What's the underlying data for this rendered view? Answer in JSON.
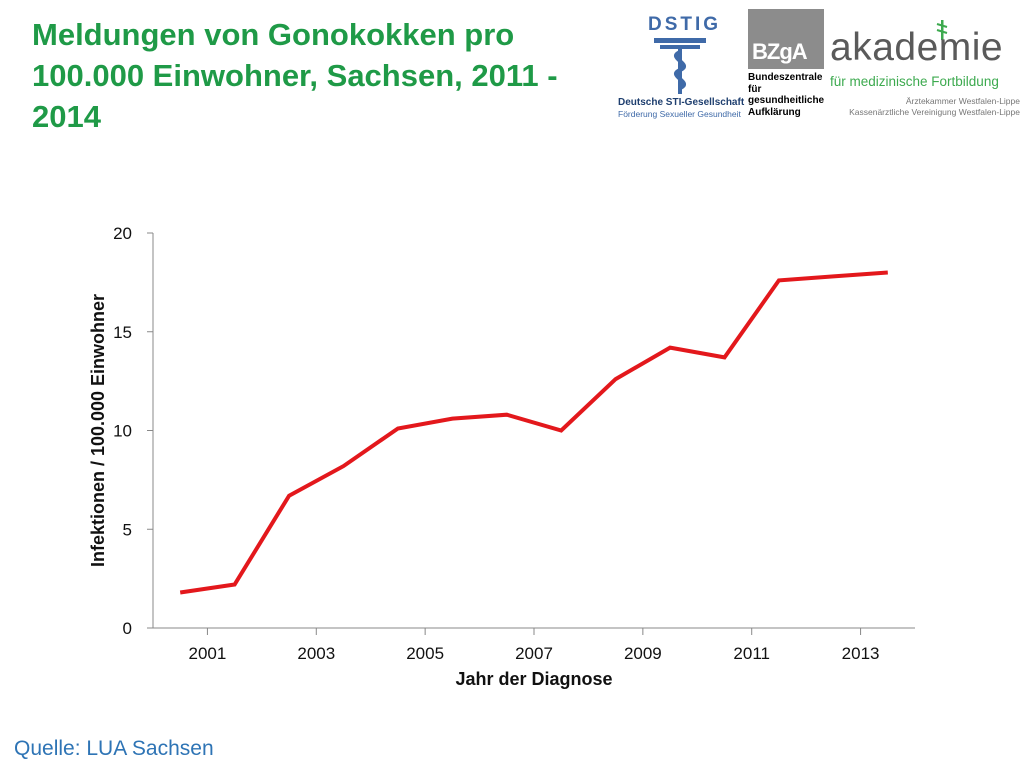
{
  "slide": {
    "title": "Meldungen von Gonokokken pro 100.000 Einwohner, Sachsen, 2011 - 2014",
    "source": "Quelle: LUA Sachsen"
  },
  "logos": {
    "dstig": {
      "wordmark": "DSTIG",
      "line1": "Deutsche STI-Gesellschaft",
      "line2": "Förderung Sexueller Gesundheit",
      "emblem_icon": "caduceus-icon"
    },
    "bzga": {
      "wordmark": "BZgA",
      "text_lines": [
        "Bundeszentrale",
        "für",
        "gesundheitliche",
        "Aufklärung"
      ]
    },
    "akademie": {
      "wordmark": "akademie",
      "subtitle": "für medizinische Fortbildung",
      "line1": "Ärztekammer Westfalen-Lippe",
      "line2": "Kassenärztliche Vereinigung Westfalen-Lippe",
      "emblem_icon": "staff-of-asclepius-icon"
    }
  },
  "chart_data": {
    "type": "line",
    "title": "",
    "xlabel": "Jahr der Diagnose",
    "ylabel": "Infektionen / 100.000 Einwohner",
    "x": [
      2001,
      2002,
      2003,
      2004,
      2005,
      2006,
      2007,
      2008,
      2009,
      2010,
      2011,
      2012,
      2013,
      2014
    ],
    "x_tick_labels": [
      "2001",
      "2003",
      "2005",
      "2007",
      "2009",
      "2011",
      "2013"
    ],
    "y_ticks": [
      0,
      5,
      10,
      15,
      20
    ],
    "xlim": [
      2000.5,
      2014.5
    ],
    "ylim": [
      0,
      20
    ],
    "grid": false,
    "legend": "none",
    "series": [
      {
        "values": [
          1.8,
          2.2,
          6.7,
          8.2,
          10.1,
          10.6,
          10.8,
          10.0,
          12.6,
          14.2,
          13.7,
          17.6,
          17.8,
          18.0
        ],
        "color": "#e3181c"
      }
    ]
  }
}
